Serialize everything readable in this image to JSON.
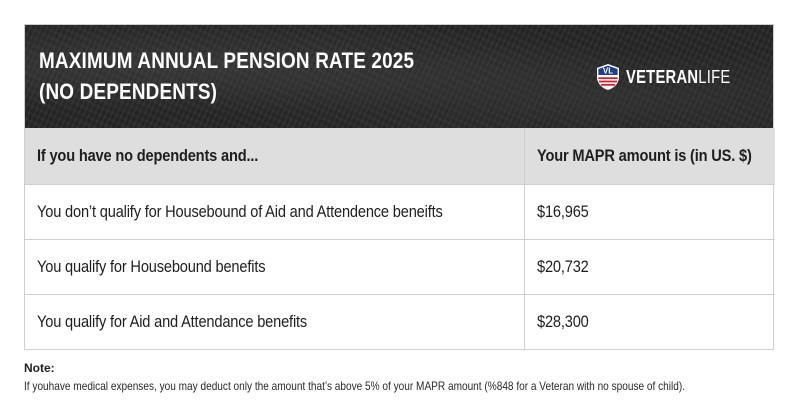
{
  "banner": {
    "title_line1": "MAXIMUM ANNUAL PENSION RATE 2025",
    "title_line2": "(NO DEPENDENTS)",
    "brand_badge": "VL",
    "brand_bold": "VETERAN",
    "brand_light": "LIFE",
    "colors": {
      "red": "#c8202f",
      "blue": "#1e3f8a",
      "background": "#262626"
    }
  },
  "table": {
    "headers": [
      "If you have no dependents and...",
      "Your MAPR amount is (in US. $)"
    ],
    "rows": [
      [
        "You don’t qualify for Housebound of Aid and Attendence beneifts",
        "$16,965"
      ],
      [
        "You qualify for Housebound benefits",
        "$20,732"
      ],
      [
        "You qualify for Aid and Attendance benefits",
        "$28,300"
      ]
    ]
  },
  "note": {
    "label": "Note:",
    "text": "If youhave medical expenses, you may deduct only the amount that’s above 5% of your MAPR amount (%848 for a Veteran with no spouse of child)."
  }
}
